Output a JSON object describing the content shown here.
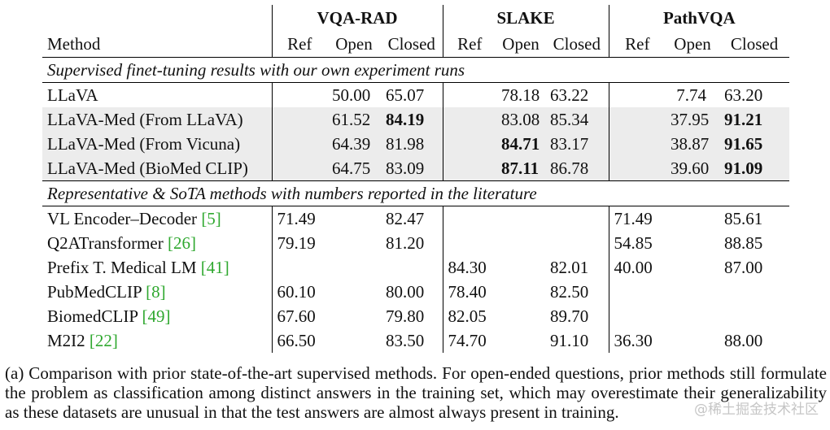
{
  "header": {
    "groups": [
      "VQA-RAD",
      "SLAKE",
      "PathVQA"
    ],
    "method_label": "Method",
    "sub": [
      "Ref",
      "Open",
      "Closed",
      "Ref",
      "Open",
      "Closed",
      "Ref",
      "Open",
      "Closed"
    ]
  },
  "section1": {
    "title": "Supervised finet-tuning results with our own experiment runs",
    "rows": [
      {
        "method": "LLaVA",
        "cells": [
          "",
          "50.00",
          "65.07",
          "",
          "78.18",
          "63.22",
          "",
          "7.74",
          "63.20"
        ]
      },
      {
        "method": "LLaVA-Med (From LLaVA)",
        "cells": [
          "",
          "61.52",
          "84.19",
          "",
          "83.08",
          "85.34",
          "",
          "37.95",
          "91.21"
        ]
      },
      {
        "method": "LLaVA-Med (From Vicuna)",
        "cells": [
          "",
          "64.39",
          "81.98",
          "",
          "84.71",
          "83.17",
          "",
          "38.87",
          "91.65"
        ]
      },
      {
        "method": "LLaVA-Med (BioMed CLIP)",
        "cells": [
          "",
          "64.75",
          "83.09",
          "",
          "87.11",
          "86.78",
          "",
          "39.60",
          "91.09"
        ]
      }
    ]
  },
  "section2": {
    "title": "Representative & SoTA methods with numbers reported in the literature",
    "rows": [
      {
        "method": "VL Encoder–Decoder",
        "cite": "[5]",
        "cells": [
          "71.49",
          "",
          "82.47",
          "",
          "",
          "",
          "71.49",
          "",
          "85.61"
        ]
      },
      {
        "method": "Q2ATransformer",
        "cite": "[26]",
        "cells": [
          "79.19",
          "",
          "81.20",
          "",
          "",
          "",
          "54.85",
          "",
          "88.85"
        ]
      },
      {
        "method": "Prefix T. Medical LM",
        "cite": "[41]",
        "cells": [
          "",
          "",
          "",
          "84.30",
          "",
          "82.01",
          "40.00",
          "",
          "87.00"
        ]
      },
      {
        "method": "PubMedCLIP",
        "cite": "[8]",
        "cells": [
          "60.10",
          "",
          "80.00",
          "78.40",
          "",
          "82.50",
          "",
          "",
          ""
        ]
      },
      {
        "method": "BiomedCLIP",
        "cite": "[49]",
        "cells": [
          "67.60",
          "",
          "79.80",
          "82.05",
          "",
          "89.70",
          "",
          "",
          ""
        ]
      },
      {
        "method": "M2I2",
        "cite": "[22]",
        "cells": [
          "66.50",
          "",
          "83.50",
          "74.70",
          "",
          "91.10",
          "36.30",
          "",
          "88.00"
        ]
      }
    ]
  },
  "caption": "(a) Comparison with prior state-of-the-art supervised methods. For open-ended questions, prior methods still formulate the problem as classification among distinct answers in the training set, which may overestimate their generalizability as these datasets are unusual in that the test answers are almost always present in training.",
  "watermark": "@稀土掘金技术社区"
}
